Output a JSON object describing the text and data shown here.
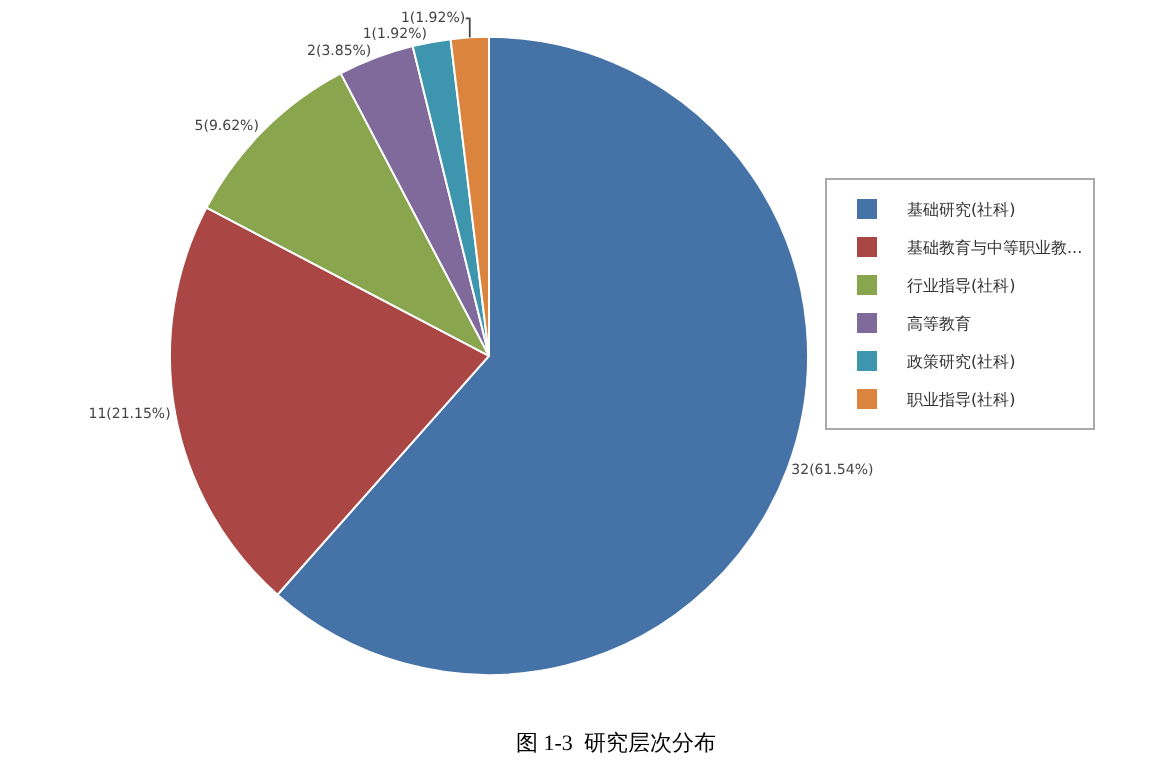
{
  "chart_data": {
    "type": "pie",
    "categories": [
      "基础研究(社科)",
      "基础教育与中等职业教...",
      "行业指导(社科)",
      "高等教育",
      "政策研究(社科)",
      "职业指导(社科)"
    ],
    "values": [
      32,
      11,
      5,
      2,
      1,
      1
    ],
    "colors": [
      "#4572a7",
      "#aa4643",
      "#89a54e",
      "#80699b",
      "#3d96ae",
      "#db843d"
    ],
    "value_labels": [
      "32(61.54%)",
      "11(21.15%)",
      "5(9.62%)",
      "2(3.85%)",
      "1(1.92%)",
      "1(1.92%)"
    ],
    "legend": "right",
    "annotations": [
      "图 1-3  研究层次分布"
    ]
  }
}
